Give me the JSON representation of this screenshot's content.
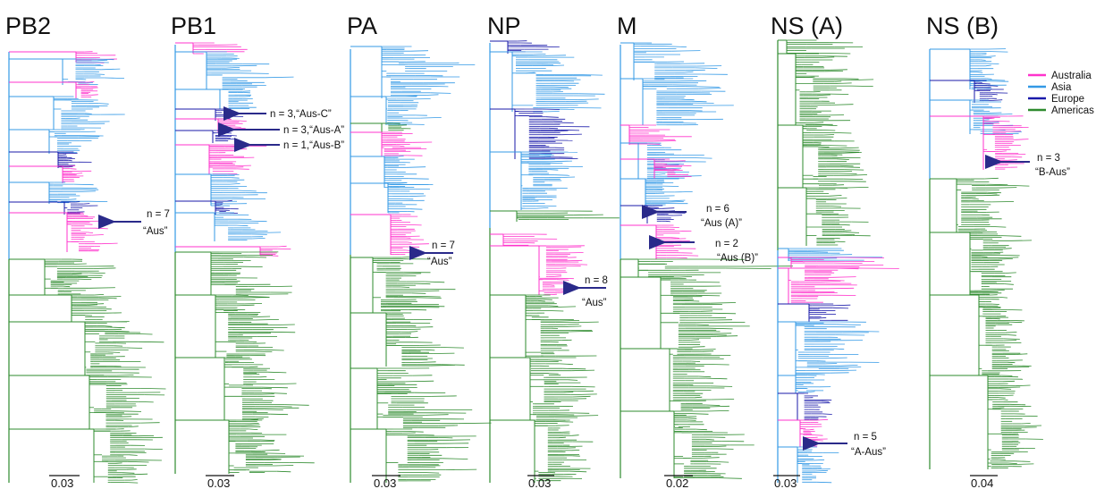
{
  "colors": {
    "australia": "#ff33cc",
    "asia": "#3399e6",
    "europe": "#1a1aaa",
    "americas": "#2e8b2e",
    "arrow": "#2a2a8a"
  },
  "legend": [
    {
      "label": "Australia",
      "color": "#ff33cc"
    },
    {
      "label": "Asia",
      "color": "#3399e6"
    },
    {
      "label": "Europe",
      "color": "#1a1aaa"
    },
    {
      "label": "Americas",
      "color": "#2e8b2e"
    }
  ],
  "panels": [
    {
      "title": "PB2",
      "scale": "0.03",
      "annotations": [
        {
          "line1": "n = 7",
          "line2": "“Aus”"
        }
      ]
    },
    {
      "title": "PB1",
      "scale": "0.03",
      "annotations": [
        {
          "line1": "n = 3,“Aus-C”",
          "line2": ""
        },
        {
          "line1": "n = 3,“Aus-A”",
          "line2": ""
        },
        {
          "line1": "n = 1,“Aus-B”",
          "line2": ""
        }
      ]
    },
    {
      "title": "PA",
      "scale": "0.03",
      "annotations": [
        {
          "line1": "n = 7",
          "line2": "“Aus”"
        }
      ]
    },
    {
      "title": "NP",
      "scale": "0.03",
      "annotations": [
        {
          "line1": "n = 8",
          "line2": "“Aus”"
        }
      ]
    },
    {
      "title": "M",
      "scale": "0.02",
      "annotations": [
        {
          "line1": "n = 6",
          "line2": "“Aus (A)”"
        },
        {
          "line1": "n = 2",
          "line2": "“Aus (B)”"
        }
      ]
    },
    {
      "title": "NS (A)",
      "scale": "0.03",
      "annotations": [
        {
          "line1": "n = 5",
          "line2": "“A-Aus”"
        }
      ]
    },
    {
      "title": "NS (B)",
      "scale": "0.04",
      "annotations": [
        {
          "line1": "n = 3",
          "line2": "“B-Aus”"
        }
      ]
    }
  ]
}
